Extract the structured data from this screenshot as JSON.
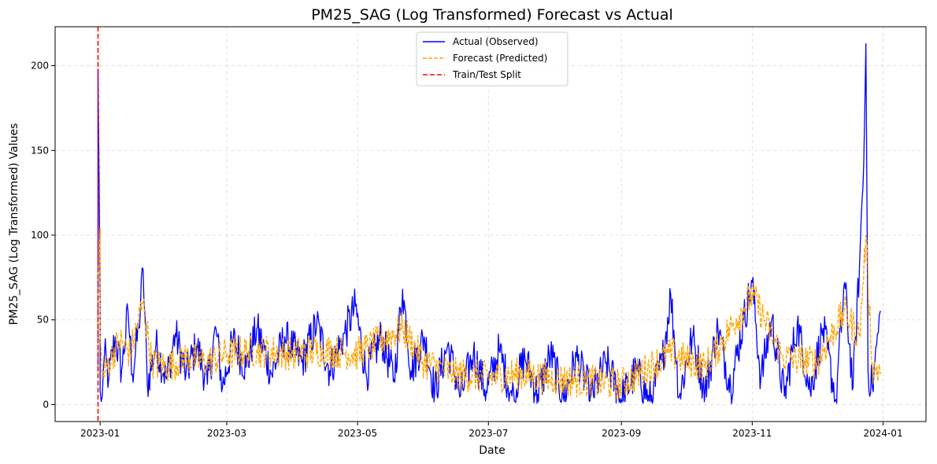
{
  "chart_data": {
    "type": "line",
    "title": "PM25_SAG (Log Transformed) Forecast vs Actual",
    "xlabel": "Date",
    "ylabel": "PM25_SAG (Log Transformed) Values",
    "xlim": [
      "2022-12-11",
      "2024-01-21"
    ],
    "ylim": [
      -10,
      223
    ],
    "x_ticks": [
      "2023-01",
      "2023-03",
      "2023-05",
      "2023-07",
      "2023-09",
      "2023-11",
      "2024-01"
    ],
    "y_ticks": [
      0,
      50,
      100,
      150,
      200
    ],
    "grid": true,
    "legend_position": "top-center",
    "colors": {
      "actual": "#0000ff",
      "forecast": "#ffa500",
      "split": "#ff0000"
    },
    "series": [
      {
        "name": "Actual (Observed)",
        "style": "solid",
        "color": "#0000ff",
        "points": [
          [
            "2022-12-31",
            20
          ],
          [
            "2022-12-31",
            105
          ],
          [
            "2022-12-31",
            198
          ],
          [
            "2023-01-01",
            60
          ],
          [
            "2023-01-01",
            8
          ],
          [
            "2023-01-02",
            5
          ],
          [
            "2023-01-03",
            30
          ],
          [
            "2023-01-05",
            15
          ],
          [
            "2023-01-08",
            40
          ],
          [
            "2023-01-11",
            20
          ],
          [
            "2023-01-14",
            55
          ],
          [
            "2023-01-16",
            18
          ],
          [
            "2023-01-19",
            45
          ],
          [
            "2023-01-21",
            80
          ],
          [
            "2023-01-23",
            12
          ],
          [
            "2023-01-27",
            35
          ],
          [
            "2023-02-01",
            15
          ],
          [
            "2023-02-05",
            42
          ],
          [
            "2023-02-10",
            18
          ],
          [
            "2023-02-15",
            35
          ],
          [
            "2023-02-20",
            12
          ],
          [
            "2023-02-24",
            45
          ],
          [
            "2023-02-27",
            10
          ],
          [
            "2023-03-04",
            38
          ],
          [
            "2023-03-10",
            22
          ],
          [
            "2023-03-15",
            45
          ],
          [
            "2023-03-22",
            18
          ],
          [
            "2023-03-28",
            40
          ],
          [
            "2023-04-05",
            25
          ],
          [
            "2023-04-12",
            48
          ],
          [
            "2023-04-18",
            20
          ],
          [
            "2023-04-25",
            42
          ],
          [
            "2023-04-30",
            58
          ],
          [
            "2023-05-05",
            18
          ],
          [
            "2023-05-12",
            40
          ],
          [
            "2023-05-18",
            15
          ],
          [
            "2023-05-22",
            68
          ],
          [
            "2023-05-26",
            20
          ],
          [
            "2023-06-01",
            40
          ],
          [
            "2023-06-06",
            8
          ],
          [
            "2023-06-12",
            35
          ],
          [
            "2023-06-18",
            5
          ],
          [
            "2023-06-24",
            30
          ],
          [
            "2023-06-30",
            8
          ],
          [
            "2023-07-06",
            32
          ],
          [
            "2023-07-12",
            5
          ],
          [
            "2023-07-18",
            28
          ],
          [
            "2023-07-24",
            6
          ],
          [
            "2023-07-30",
            30
          ],
          [
            "2023-08-05",
            4
          ],
          [
            "2023-08-11",
            28
          ],
          [
            "2023-08-18",
            5
          ],
          [
            "2023-08-25",
            25
          ],
          [
            "2023-09-01",
            3
          ],
          [
            "2023-09-08",
            20
          ],
          [
            "2023-09-14",
            2
          ],
          [
            "2023-09-20",
            25
          ],
          [
            "2023-09-24",
            65
          ],
          [
            "2023-09-28",
            5
          ],
          [
            "2023-10-04",
            40
          ],
          [
            "2023-10-10",
            8
          ],
          [
            "2023-10-16",
            45
          ],
          [
            "2023-10-22",
            10
          ],
          [
            "2023-10-28",
            50
          ],
          [
            "2023-11-01",
            72
          ],
          [
            "2023-11-05",
            15
          ],
          [
            "2023-11-10",
            50
          ],
          [
            "2023-11-16",
            5
          ],
          [
            "2023-11-22",
            48
          ],
          [
            "2023-11-28",
            8
          ],
          [
            "2023-12-04",
            45
          ],
          [
            "2023-12-10",
            3
          ],
          [
            "2023-12-14",
            72
          ],
          [
            "2023-12-18",
            10
          ],
          [
            "2023-12-21",
            82
          ],
          [
            "2023-12-23",
            143
          ],
          [
            "2023-12-24",
            213
          ],
          [
            "2023-12-25",
            20
          ],
          [
            "2023-12-27",
            10
          ],
          [
            "2023-12-29",
            35
          ],
          [
            "2023-12-31",
            55
          ]
        ]
      },
      {
        "name": "Forecast (Predicted)",
        "style": "dashed",
        "color": "#ffa500",
        "points": [
          [
            "2022-12-31",
            18
          ],
          [
            "2022-12-31",
            80
          ],
          [
            "2023-01-01",
            104
          ],
          [
            "2023-01-01",
            40
          ],
          [
            "2023-01-02",
            15
          ],
          [
            "2023-01-05",
            25
          ],
          [
            "2023-01-10",
            38
          ],
          [
            "2023-01-15",
            30
          ],
          [
            "2023-01-21",
            60
          ],
          [
            "2023-01-25",
            25
          ],
          [
            "2023-02-01",
            22
          ],
          [
            "2023-02-10",
            28
          ],
          [
            "2023-02-20",
            25
          ],
          [
            "2023-03-01",
            30
          ],
          [
            "2023-03-15",
            32
          ],
          [
            "2023-04-01",
            30
          ],
          [
            "2023-04-15",
            32
          ],
          [
            "2023-05-01",
            30
          ],
          [
            "2023-05-22",
            45
          ],
          [
            "2023-06-01",
            25
          ],
          [
            "2023-06-15",
            18
          ],
          [
            "2023-07-01",
            16
          ],
          [
            "2023-07-15",
            18
          ],
          [
            "2023-08-01",
            15
          ],
          [
            "2023-08-15",
            14
          ],
          [
            "2023-09-01",
            12
          ],
          [
            "2023-09-24",
            30
          ],
          [
            "2023-10-10",
            22
          ],
          [
            "2023-11-01",
            65
          ],
          [
            "2023-11-15",
            28
          ],
          [
            "2023-12-01",
            25
          ],
          [
            "2023-12-14",
            55
          ],
          [
            "2023-12-21",
            40
          ],
          [
            "2023-12-24",
            100
          ],
          [
            "2023-12-27",
            22
          ],
          [
            "2023-12-31",
            20
          ]
        ]
      }
    ],
    "vline": {
      "name": "Train/Test Split",
      "x": "2022-12-31",
      "style": "dashed",
      "color": "#ff0000"
    }
  }
}
